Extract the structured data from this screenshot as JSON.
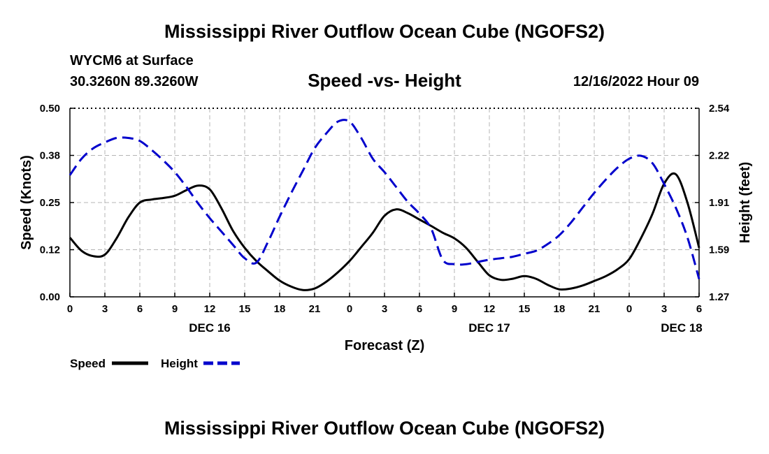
{
  "header": {
    "title": "Mississippi River Outflow Ocean Cube (NGOFS2)",
    "station": "WYCM6 at Surface",
    "coords": "30.3260N  89.3260W",
    "subtitle": "Speed -vs- Height",
    "datestamp": "12/16/2022 Hour 09"
  },
  "footer": {
    "title": "Mississippi River Outflow Ocean Cube (NGOFS2)"
  },
  "chart_data": {
    "type": "line",
    "title": "Speed -vs- Height",
    "xlabel": "Forecast (Z)",
    "ylabel": "Speed (Knots)",
    "y2label": "Height (feet)",
    "xlim": [
      0,
      54
    ],
    "ylim": [
      0,
      0.5
    ],
    "y2lim": [
      1.27,
      2.54
    ],
    "grid": true,
    "x_ticks": [
      0,
      3,
      6,
      9,
      12,
      15,
      18,
      21,
      24,
      27,
      30,
      33,
      36,
      39,
      42,
      45,
      48,
      51,
      54
    ],
    "x_tick_labels": [
      "0",
      "3",
      "6",
      "9",
      "12",
      "15",
      "18",
      "21",
      "0",
      "3",
      "6",
      "9",
      "12",
      "15",
      "18",
      "21",
      "0",
      "3",
      "6"
    ],
    "y_ticks": [
      0,
      0.125,
      0.25,
      0.375,
      0.5
    ],
    "y_tick_labels": [
      "0.00",
      "0.12",
      "0.25",
      "0.38",
      "0.50"
    ],
    "y2_ticks": [
      1.27,
      1.5875,
      1.905,
      2.2225,
      2.54
    ],
    "y2_tick_labels": [
      "1.27",
      "1.59",
      "1.91",
      "2.22",
      "2.54"
    ],
    "date_labels": [
      {
        "x": 12,
        "label": "DEC 16"
      },
      {
        "x": 36,
        "label": "DEC 17"
      },
      {
        "x": 52.5,
        "label": "DEC 18"
      }
    ],
    "series": [
      {
        "name": "Speed",
        "axis": "left",
        "color": "#000000",
        "dash": "solid",
        "x": [
          0,
          1,
          2,
          3,
          4,
          5,
          6,
          7,
          8,
          9,
          10,
          11,
          12,
          13,
          14,
          15,
          16,
          17,
          18,
          19,
          20,
          21,
          22,
          23,
          24,
          25,
          26,
          27,
          28,
          29,
          30,
          31,
          32,
          33,
          34,
          35,
          36,
          37,
          38,
          39,
          40,
          41,
          42,
          43,
          44,
          45,
          46,
          47,
          48,
          49,
          50,
          51,
          52,
          53,
          54
        ],
        "values": [
          0.157,
          0.122,
          0.108,
          0.112,
          0.155,
          0.21,
          0.25,
          0.258,
          0.262,
          0.268,
          0.283,
          0.295,
          0.285,
          0.235,
          0.175,
          0.13,
          0.095,
          0.068,
          0.043,
          0.027,
          0.018,
          0.022,
          0.04,
          0.065,
          0.095,
          0.132,
          0.17,
          0.215,
          0.232,
          0.222,
          0.205,
          0.188,
          0.17,
          0.155,
          0.13,
          0.093,
          0.057,
          0.045,
          0.048,
          0.055,
          0.048,
          0.032,
          0.02,
          0.022,
          0.03,
          0.042,
          0.055,
          0.073,
          0.1,
          0.155,
          0.22,
          0.3,
          0.325,
          0.25,
          0.13
        ]
      },
      {
        "name": "Height",
        "axis": "right",
        "color": "#0000cc",
        "dash": "dashed",
        "x": [
          0,
          1,
          2,
          3,
          4,
          5,
          6,
          7,
          8,
          9,
          10,
          11,
          12,
          13,
          14,
          15,
          16,
          17,
          18,
          19,
          20,
          21,
          22,
          23,
          24,
          25,
          26,
          27,
          28,
          29,
          30,
          31,
          32,
          33,
          34,
          35,
          36,
          37,
          38,
          39,
          40,
          41,
          42,
          43,
          44,
          45,
          46,
          47,
          48,
          49,
          50,
          51,
          52,
          53,
          54
        ],
        "values": [
          2.09,
          2.2,
          2.27,
          2.31,
          2.34,
          2.34,
          2.32,
          2.26,
          2.19,
          2.11,
          2.01,
          1.9,
          1.8,
          1.71,
          1.62,
          1.53,
          1.5,
          1.64,
          1.81,
          1.97,
          2.12,
          2.27,
          2.37,
          2.45,
          2.45,
          2.34,
          2.2,
          2.11,
          2.01,
          1.91,
          1.83,
          1.73,
          1.52,
          1.49,
          1.49,
          1.505,
          1.52,
          1.53,
          1.54,
          1.56,
          1.58,
          1.625,
          1.685,
          1.77,
          1.87,
          1.97,
          2.06,
          2.14,
          2.2,
          2.22,
          2.17,
          2.03,
          1.87,
          1.67,
          1.39
        ]
      }
    ],
    "legend": [
      {
        "label": "Speed",
        "color": "#000000",
        "dash": "solid"
      },
      {
        "label": "Height",
        "color": "#0000cc",
        "dash": "dashed"
      }
    ]
  }
}
